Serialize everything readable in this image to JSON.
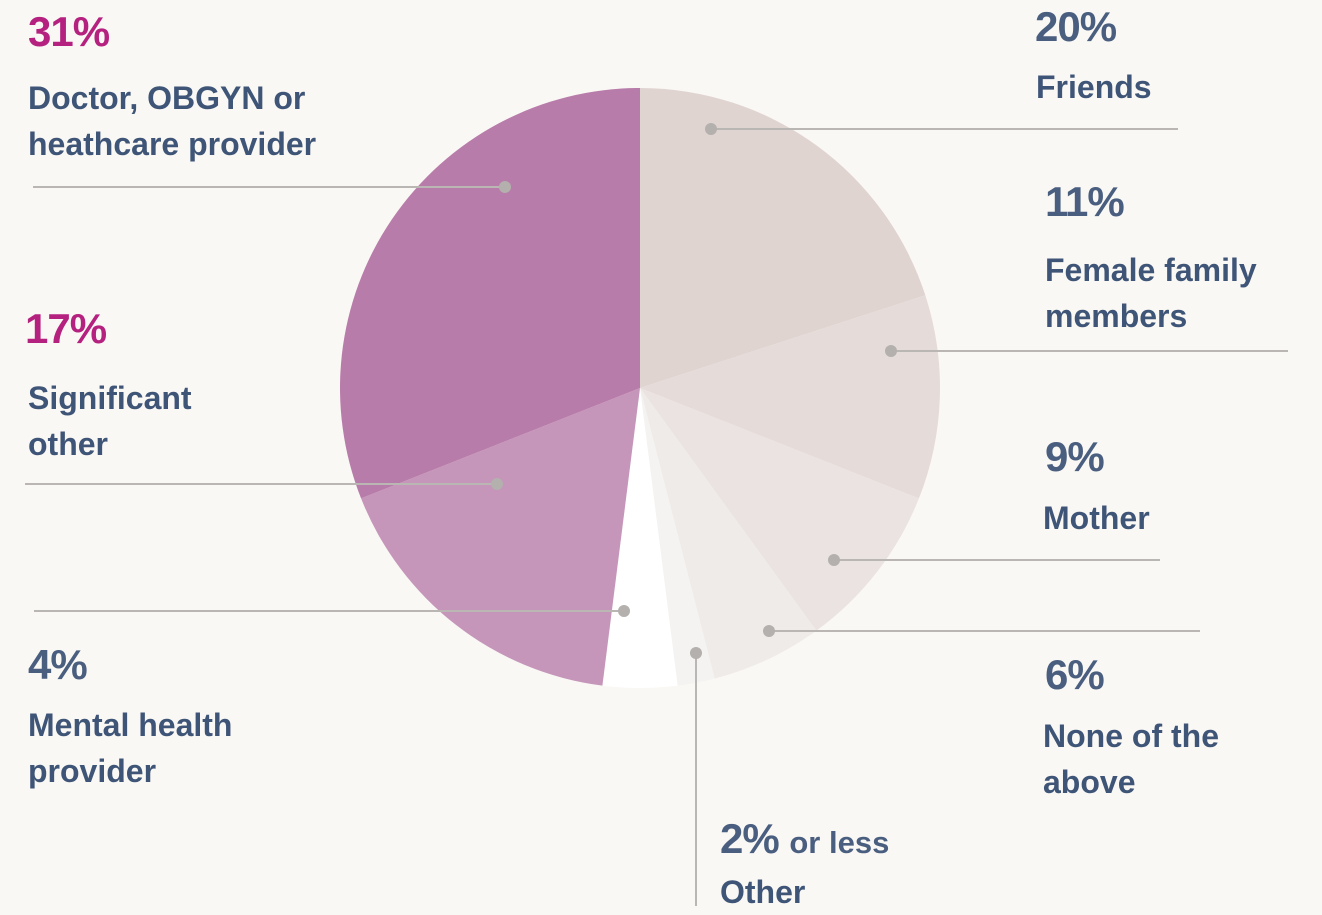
{
  "chart_data": {
    "type": "pie",
    "categories": [
      "Friends",
      "Female family members",
      "Mother",
      "None of the above",
      "Other",
      "Mental health provider",
      "Significant other",
      "Doctor, OBGYN or heathcare provider"
    ],
    "values": [
      20,
      11,
      9,
      6,
      2,
      4,
      17,
      31
    ],
    "value_labels": [
      "20%",
      "11%",
      "9%",
      "6%",
      "2%",
      "4%",
      "17%",
      "31%"
    ],
    "annotations": [
      "or less"
    ],
    "colors": [
      "#e0d4d1",
      "#e5dbd8",
      "#ebe3e1",
      "#efebe9",
      "#f5f3f1",
      "#ffffff",
      "#c596ba",
      "#b87caa"
    ],
    "label_colors": [
      "#4a5f80",
      "#4a5f80",
      "#4a5f80",
      "#4a5f80",
      "#4a5f80",
      "#4a5f80",
      "#b5217f",
      "#b5217f"
    ]
  }
}
